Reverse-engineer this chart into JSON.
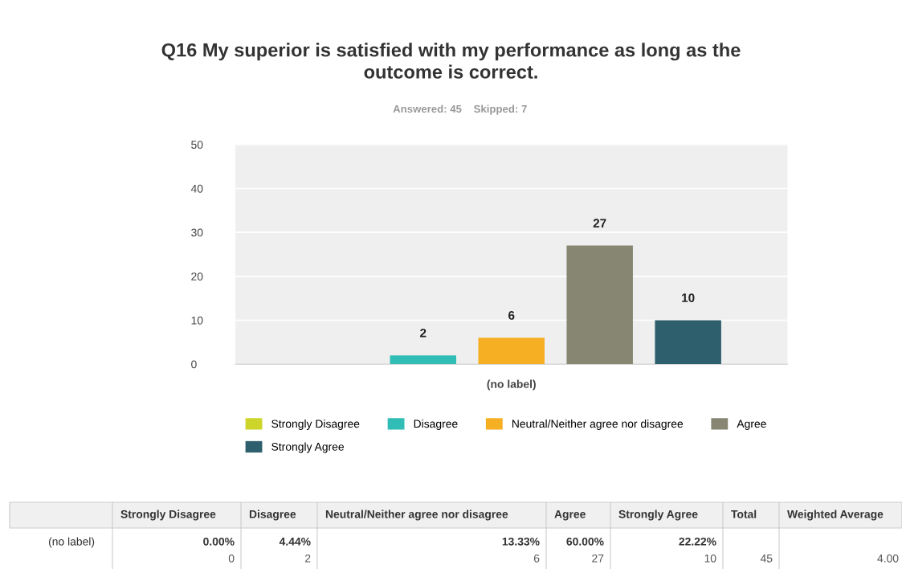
{
  "chart_data": {
    "type": "bar",
    "title": "Q16 My superior is satisfied with my performance as long as the outcome is correct.",
    "subtitle": "Answered: 45    Skipped: 7",
    "categories": [
      "(no label)"
    ],
    "series": [
      {
        "name": "Strongly Disagree",
        "color": "#cdd52b",
        "values": [
          0
        ],
        "value_labels": [
          null
        ]
      },
      {
        "name": "Disagree",
        "color": "#2fbdb6",
        "values": [
          2
        ],
        "value_labels": [
          "2"
        ]
      },
      {
        "name": "Neutral/Neither agree nor disagree",
        "color": "#f6ae22",
        "values": [
          6
        ],
        "value_labels": [
          "6"
        ]
      },
      {
        "name": "Agree",
        "color": "#878673",
        "values": [
          27
        ],
        "value_labels": [
          "27"
        ]
      },
      {
        "name": "Strongly Agree",
        "color": "#2e5f6d",
        "values": [
          10
        ],
        "value_labels": [
          "10"
        ]
      }
    ],
    "ylim": [
      0,
      50
    ],
    "yticks": [
      0,
      10,
      20,
      30,
      40,
      50
    ],
    "grid": "y",
    "legend": "bottom",
    "annotations": [
      "(no label)",
      "0.00%",
      "4.44%",
      "13.33%",
      "60.00%",
      "22.22%",
      "Total",
      "Weighted Average",
      "45",
      "4.00",
      "0",
      "2",
      "6",
      "27",
      "10"
    ]
  }
}
